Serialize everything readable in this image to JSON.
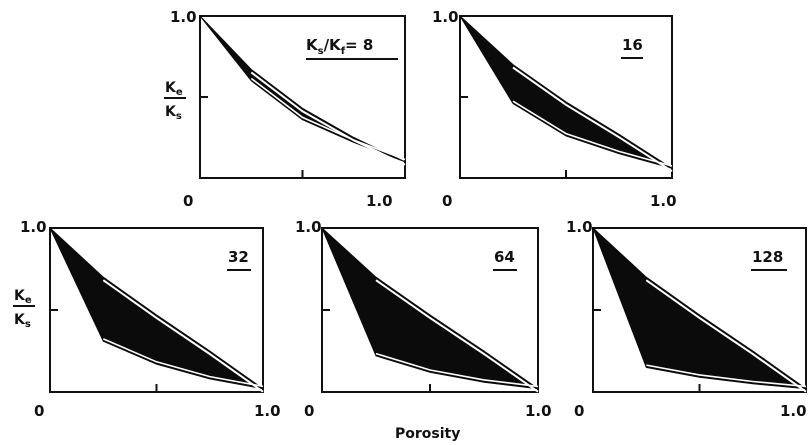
{
  "figure": {
    "xlabel": "Porosity",
    "ylabel_num": "K",
    "ylabel_num_sub": "e",
    "ylabel_den": "K",
    "ylabel_den_sub": "s"
  },
  "chart_data": [
    {
      "type": "area",
      "ratio_label": "K",
      "ratio_label_sub1": "s",
      "ratio_label_mid": "/K",
      "ratio_label_sub2": "f",
      "ratio_label_end": "= 8",
      "ratio": 8,
      "xlim": [
        0,
        1
      ],
      "ylim": [
        0,
        1
      ],
      "x_ticks": [
        "0",
        "1.0"
      ],
      "y_ticks": [
        "1.0"
      ],
      "upper_bound": {
        "x": [
          0,
          0.25,
          0.5,
          0.75,
          1.0
        ],
        "y": [
          1.0,
          0.67,
          0.43,
          0.25,
          0.1
        ]
      },
      "lower_bound": {
        "x": [
          0,
          0.25,
          0.5,
          0.75,
          1.0
        ],
        "y": [
          1.0,
          0.6,
          0.36,
          0.22,
          0.1
        ]
      }
    },
    {
      "type": "area",
      "ratio_label": "16",
      "ratio": 16,
      "xlim": [
        0,
        1
      ],
      "ylim": [
        0,
        1
      ],
      "x_ticks": [
        "0",
        "1.0"
      ],
      "y_ticks": [
        "1.0"
      ],
      "upper_bound": {
        "x": [
          0,
          0.25,
          0.5,
          0.75,
          1.0
        ],
        "y": [
          1.0,
          0.7,
          0.47,
          0.27,
          0.06
        ]
      },
      "lower_bound": {
        "x": [
          0,
          0.25,
          0.5,
          0.75,
          1.0
        ],
        "y": [
          1.0,
          0.46,
          0.26,
          0.15,
          0.06
        ]
      }
    },
    {
      "type": "area",
      "ratio_label": "32",
      "ratio": 32,
      "xlim": [
        0,
        1
      ],
      "ylim": [
        0,
        1
      ],
      "x_ticks": [
        "0",
        "1.0"
      ],
      "y_ticks": [
        "1.0"
      ],
      "upper_bound": {
        "x": [
          0,
          0.25,
          0.5,
          0.75,
          1.0
        ],
        "y": [
          1.0,
          0.7,
          0.47,
          0.25,
          0.02
        ]
      },
      "lower_bound": {
        "x": [
          0,
          0.25,
          0.5,
          0.75,
          1.0
        ],
        "y": [
          1.0,
          0.31,
          0.17,
          0.08,
          0.02
        ]
      }
    },
    {
      "type": "area",
      "ratio_label": "64",
      "ratio": 64,
      "xlim": [
        0,
        1
      ],
      "ylim": [
        0,
        1
      ],
      "x_ticks": [
        "0",
        "1.0"
      ],
      "y_ticks": [
        "1.0"
      ],
      "upper_bound": {
        "x": [
          0,
          0.25,
          0.5,
          0.75,
          1.0
        ],
        "y": [
          1.0,
          0.7,
          0.47,
          0.25,
          0.02
        ]
      },
      "lower_bound": {
        "x": [
          0,
          0.25,
          0.5,
          0.75,
          1.0
        ],
        "y": [
          1.0,
          0.22,
          0.12,
          0.06,
          0.02
        ]
      }
    },
    {
      "type": "area",
      "ratio_label": "128",
      "ratio": 128,
      "xlim": [
        0,
        1
      ],
      "ylim": [
        0,
        1
      ],
      "x_ticks": [
        "0",
        "1.0"
      ],
      "y_ticks": [
        "1.0"
      ],
      "upper_bound": {
        "x": [
          0,
          0.25,
          0.5,
          0.75,
          1.0
        ],
        "y": [
          1.0,
          0.7,
          0.47,
          0.25,
          0.02
        ]
      },
      "lower_bound": {
        "x": [
          0,
          0.25,
          0.5,
          0.75,
          1.0
        ],
        "y": [
          1.0,
          0.15,
          0.09,
          0.05,
          0.02
        ]
      }
    }
  ]
}
